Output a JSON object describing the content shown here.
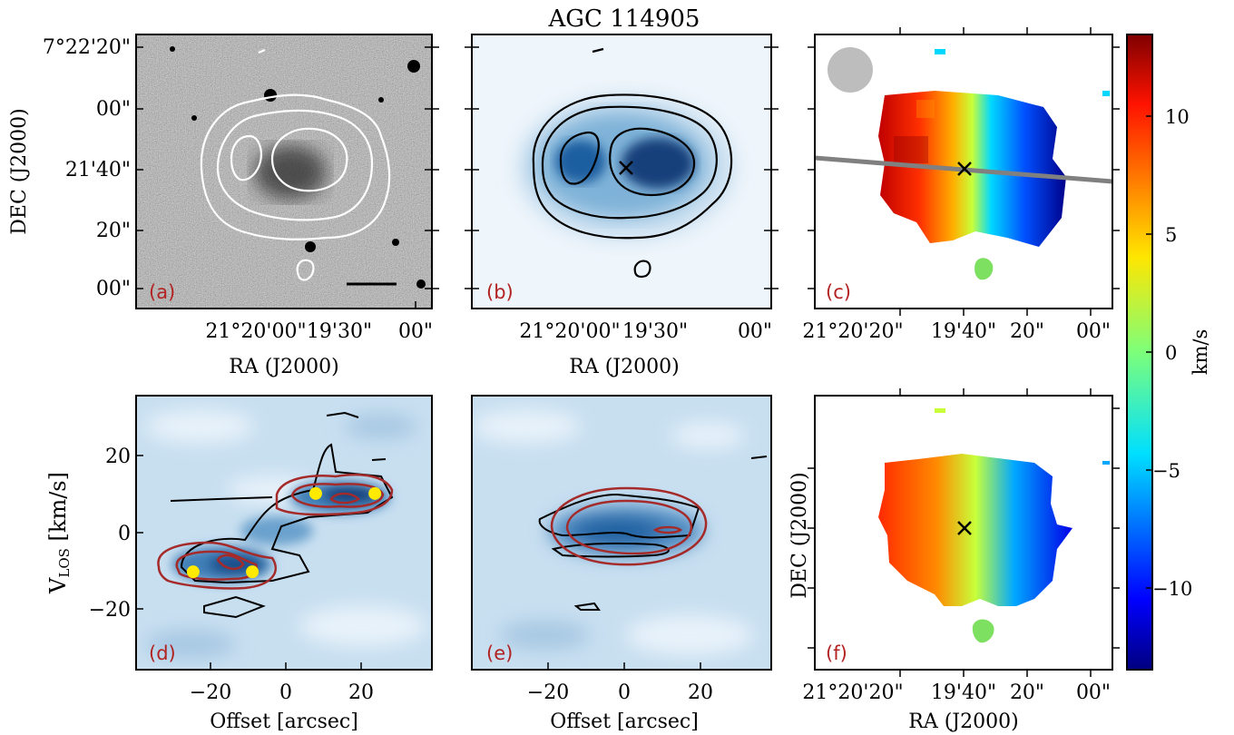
{
  "figure": {
    "title": "AGC 114905",
    "panel_labels": [
      "(a)",
      "(b)",
      "(c)",
      "(d)",
      "(e)",
      "(f)"
    ]
  },
  "axes": {
    "dec_ticks": [
      "7°22'20\"",
      "00\"",
      "21'40\"",
      "20\"",
      "00\""
    ],
    "ra_ticks_top": [
      "21°20'00\"",
      "19'30\"",
      "00\""
    ],
    "ra_ticks_c": [
      "21°20'20\"",
      "19'40\"",
      "20\"",
      "00\""
    ],
    "dec_label": "DEC (J2000)",
    "ra_label": "RA (J2000)",
    "offset_label": "Offset [arcsec]",
    "vlos_label": "V",
    "vlos_sub": "LOS",
    "vlos_unit": "[km/s]",
    "vlos_ticks": [
      "20",
      "0",
      "−20"
    ],
    "offset_ticks": [
      "−20",
      "0",
      "20"
    ]
  },
  "colorbar": {
    "label": "km/s",
    "ticks": [
      "10",
      "5",
      "0",
      "−5",
      "−10"
    ],
    "range": [
      -13.5,
      13.5
    ],
    "colormap": "jet"
  },
  "chart_data": [
    {
      "type": "scatter",
      "panel": "d",
      "xlabel": "Offset [arcsec]",
      "ylabel": "V_LOS [km/s]",
      "xlim": [
        -35,
        35
      ],
      "ylim": [
        -35,
        35
      ],
      "x": [
        -21.5,
        -7.5,
        7.5,
        21.5
      ],
      "y": [
        -10,
        -10,
        10,
        10
      ],
      "marker_color": "#ffea00"
    }
  ],
  "colors": {
    "contour_red": "#a52a2a",
    "pa_line": "#808080",
    "beam": "#bdbdbd",
    "panel_label": "#b22222"
  }
}
